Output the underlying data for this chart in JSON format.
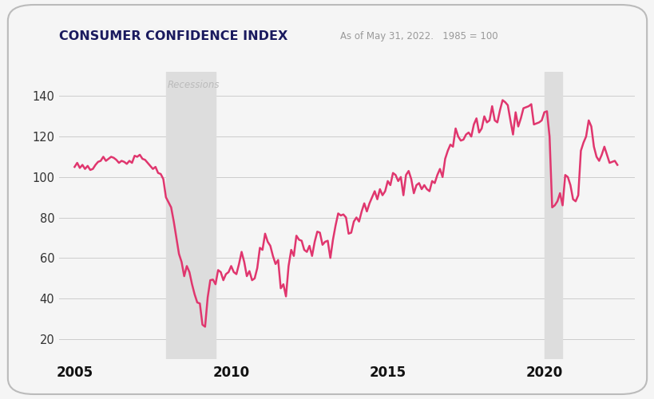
{
  "title": "CONSUMER CONFIDENCE INDEX",
  "subtitle": "As of May 31, 2022.   1985 = 100",
  "title_color": "#1a1a5e",
  "subtitle_color": "#999999",
  "line_color": "#e0366e",
  "background_color": "#f5f5f5",
  "recession1_start": 2007.917,
  "recession1_end": 2009.5,
  "recession2_start": 2020.0,
  "recession2_end": 2020.58,
  "recession_color": "#dddddd",
  "recession_label": "Recessions",
  "ylim": [
    10,
    152
  ],
  "yticks": [
    20,
    40,
    60,
    80,
    100,
    120,
    140
  ],
  "xticks": [
    2005,
    2010,
    2015,
    2020
  ],
  "xlim": [
    2004.5,
    2022.9
  ],
  "data": [
    [
      2005.0,
      105.0
    ],
    [
      2005.083,
      107.0
    ],
    [
      2005.167,
      104.5
    ],
    [
      2005.25,
      106.0
    ],
    [
      2005.333,
      104.0
    ],
    [
      2005.417,
      105.5
    ],
    [
      2005.5,
      103.5
    ],
    [
      2005.583,
      104.0
    ],
    [
      2005.667,
      106.0
    ],
    [
      2005.75,
      107.5
    ],
    [
      2005.833,
      108.0
    ],
    [
      2005.917,
      110.0
    ],
    [
      2006.0,
      108.0
    ],
    [
      2006.083,
      109.0
    ],
    [
      2006.167,
      110.0
    ],
    [
      2006.25,
      109.5
    ],
    [
      2006.333,
      108.5
    ],
    [
      2006.417,
      107.0
    ],
    [
      2006.5,
      108.0
    ],
    [
      2006.583,
      107.5
    ],
    [
      2006.667,
      106.5
    ],
    [
      2006.75,
      108.0
    ],
    [
      2006.833,
      107.0
    ],
    [
      2006.917,
      110.5
    ],
    [
      2007.0,
      110.0
    ],
    [
      2007.083,
      111.0
    ],
    [
      2007.167,
      109.0
    ],
    [
      2007.25,
      108.5
    ],
    [
      2007.333,
      107.0
    ],
    [
      2007.417,
      105.5
    ],
    [
      2007.5,
      104.0
    ],
    [
      2007.583,
      105.0
    ],
    [
      2007.667,
      102.0
    ],
    [
      2007.75,
      101.5
    ],
    [
      2007.833,
      99.0
    ],
    [
      2007.917,
      90.0
    ],
    [
      2008.0,
      87.5
    ],
    [
      2008.083,
      85.0
    ],
    [
      2008.167,
      78.0
    ],
    [
      2008.25,
      70.0
    ],
    [
      2008.333,
      62.0
    ],
    [
      2008.417,
      58.0
    ],
    [
      2008.5,
      51.0
    ],
    [
      2008.583,
      56.0
    ],
    [
      2008.667,
      53.0
    ],
    [
      2008.75,
      47.0
    ],
    [
      2008.833,
      42.0
    ],
    [
      2008.917,
      38.0
    ],
    [
      2009.0,
      37.5
    ],
    [
      2009.083,
      27.0
    ],
    [
      2009.167,
      26.0
    ],
    [
      2009.25,
      40.5
    ],
    [
      2009.333,
      49.0
    ],
    [
      2009.417,
      49.3
    ],
    [
      2009.5,
      47.0
    ],
    [
      2009.583,
      54.0
    ],
    [
      2009.667,
      53.0
    ],
    [
      2009.75,
      49.0
    ],
    [
      2009.833,
      52.0
    ],
    [
      2009.917,
      53.0
    ],
    [
      2010.0,
      56.0
    ],
    [
      2010.083,
      53.0
    ],
    [
      2010.167,
      52.0
    ],
    [
      2010.25,
      57.0
    ],
    [
      2010.333,
      63.0
    ],
    [
      2010.417,
      58.0
    ],
    [
      2010.5,
      51.0
    ],
    [
      2010.583,
      53.5
    ],
    [
      2010.667,
      49.0
    ],
    [
      2010.75,
      49.9
    ],
    [
      2010.833,
      55.0
    ],
    [
      2010.917,
      65.0
    ],
    [
      2011.0,
      64.0
    ],
    [
      2011.083,
      72.0
    ],
    [
      2011.167,
      68.0
    ],
    [
      2011.25,
      66.0
    ],
    [
      2011.333,
      61.0
    ],
    [
      2011.417,
      57.0
    ],
    [
      2011.5,
      59.0
    ],
    [
      2011.583,
      45.0
    ],
    [
      2011.667,
      47.0
    ],
    [
      2011.75,
      41.0
    ],
    [
      2011.833,
      56.0
    ],
    [
      2011.917,
      64.0
    ],
    [
      2012.0,
      61.0
    ],
    [
      2012.083,
      71.0
    ],
    [
      2012.167,
      69.0
    ],
    [
      2012.25,
      68.5
    ],
    [
      2012.333,
      64.0
    ],
    [
      2012.417,
      63.0
    ],
    [
      2012.5,
      66.0
    ],
    [
      2012.583,
      61.0
    ],
    [
      2012.667,
      68.0
    ],
    [
      2012.75,
      73.0
    ],
    [
      2012.833,
      72.5
    ],
    [
      2012.917,
      66.5
    ],
    [
      2013.0,
      68.0
    ],
    [
      2013.083,
      68.5
    ],
    [
      2013.167,
      60.0
    ],
    [
      2013.25,
      69.0
    ],
    [
      2013.333,
      76.0
    ],
    [
      2013.417,
      82.0
    ],
    [
      2013.5,
      81.0
    ],
    [
      2013.583,
      81.5
    ],
    [
      2013.667,
      80.0
    ],
    [
      2013.75,
      72.0
    ],
    [
      2013.833,
      72.5
    ],
    [
      2013.917,
      78.0
    ],
    [
      2014.0,
      80.0
    ],
    [
      2014.083,
      78.0
    ],
    [
      2014.167,
      83.0
    ],
    [
      2014.25,
      87.0
    ],
    [
      2014.333,
      83.0
    ],
    [
      2014.417,
      87.0
    ],
    [
      2014.5,
      90.0
    ],
    [
      2014.583,
      93.0
    ],
    [
      2014.667,
      89.0
    ],
    [
      2014.75,
      94.0
    ],
    [
      2014.833,
      91.0
    ],
    [
      2014.917,
      93.0
    ],
    [
      2015.0,
      98.0
    ],
    [
      2015.083,
      96.0
    ],
    [
      2015.167,
      102.0
    ],
    [
      2015.25,
      101.0
    ],
    [
      2015.333,
      98.0
    ],
    [
      2015.417,
      100.0
    ],
    [
      2015.5,
      91.0
    ],
    [
      2015.583,
      101.0
    ],
    [
      2015.667,
      103.0
    ],
    [
      2015.75,
      99.0
    ],
    [
      2015.833,
      92.0
    ],
    [
      2015.917,
      96.0
    ],
    [
      2016.0,
      97.0
    ],
    [
      2016.083,
      94.0
    ],
    [
      2016.167,
      96.0
    ],
    [
      2016.25,
      94.0
    ],
    [
      2016.333,
      93.0
    ],
    [
      2016.417,
      98.0
    ],
    [
      2016.5,
      97.0
    ],
    [
      2016.583,
      101.0
    ],
    [
      2016.667,
      104.0
    ],
    [
      2016.75,
      100.0
    ],
    [
      2016.833,
      109.0
    ],
    [
      2016.917,
      113.0
    ],
    [
      2017.0,
      116.0
    ],
    [
      2017.083,
      115.0
    ],
    [
      2017.167,
      124.0
    ],
    [
      2017.25,
      120.0
    ],
    [
      2017.333,
      118.0
    ],
    [
      2017.417,
      118.5
    ],
    [
      2017.5,
      121.0
    ],
    [
      2017.583,
      122.0
    ],
    [
      2017.667,
      120.0
    ],
    [
      2017.75,
      126.0
    ],
    [
      2017.833,
      129.0
    ],
    [
      2017.917,
      122.0
    ],
    [
      2018.0,
      124.0
    ],
    [
      2018.083,
      130.0
    ],
    [
      2018.167,
      127.0
    ],
    [
      2018.25,
      128.0
    ],
    [
      2018.333,
      135.0
    ],
    [
      2018.417,
      128.0
    ],
    [
      2018.5,
      127.0
    ],
    [
      2018.583,
      133.0
    ],
    [
      2018.667,
      138.0
    ],
    [
      2018.75,
      137.0
    ],
    [
      2018.833,
      135.5
    ],
    [
      2018.917,
      128.0
    ],
    [
      2019.0,
      121.0
    ],
    [
      2019.083,
      132.0
    ],
    [
      2019.167,
      125.0
    ],
    [
      2019.25,
      129.0
    ],
    [
      2019.333,
      134.0
    ],
    [
      2019.417,
      134.5
    ],
    [
      2019.5,
      135.0
    ],
    [
      2019.583,
      136.0
    ],
    [
      2019.667,
      126.0
    ],
    [
      2019.75,
      126.5
    ],
    [
      2019.833,
      127.0
    ],
    [
      2019.917,
      128.0
    ],
    [
      2020.0,
      132.0
    ],
    [
      2020.083,
      132.5
    ],
    [
      2020.167,
      120.0
    ],
    [
      2020.25,
      85.0
    ],
    [
      2020.333,
      86.0
    ],
    [
      2020.417,
      88.0
    ],
    [
      2020.5,
      92.0
    ],
    [
      2020.583,
      86.0
    ],
    [
      2020.667,
      101.0
    ],
    [
      2020.75,
      100.0
    ],
    [
      2020.833,
      96.0
    ],
    [
      2020.917,
      89.0
    ],
    [
      2021.0,
      88.0
    ],
    [
      2021.083,
      91.0
    ],
    [
      2021.167,
      113.0
    ],
    [
      2021.25,
      117.0
    ],
    [
      2021.333,
      120.0
    ],
    [
      2021.417,
      128.0
    ],
    [
      2021.5,
      125.0
    ],
    [
      2021.583,
      115.0
    ],
    [
      2021.667,
      110.0
    ],
    [
      2021.75,
      108.0
    ],
    [
      2021.833,
      111.0
    ],
    [
      2021.917,
      115.0
    ],
    [
      2022.0,
      111.0
    ],
    [
      2022.083,
      107.0
    ],
    [
      2022.167,
      107.5
    ],
    [
      2022.25,
      108.0
    ],
    [
      2022.333,
      106.0
    ]
  ]
}
